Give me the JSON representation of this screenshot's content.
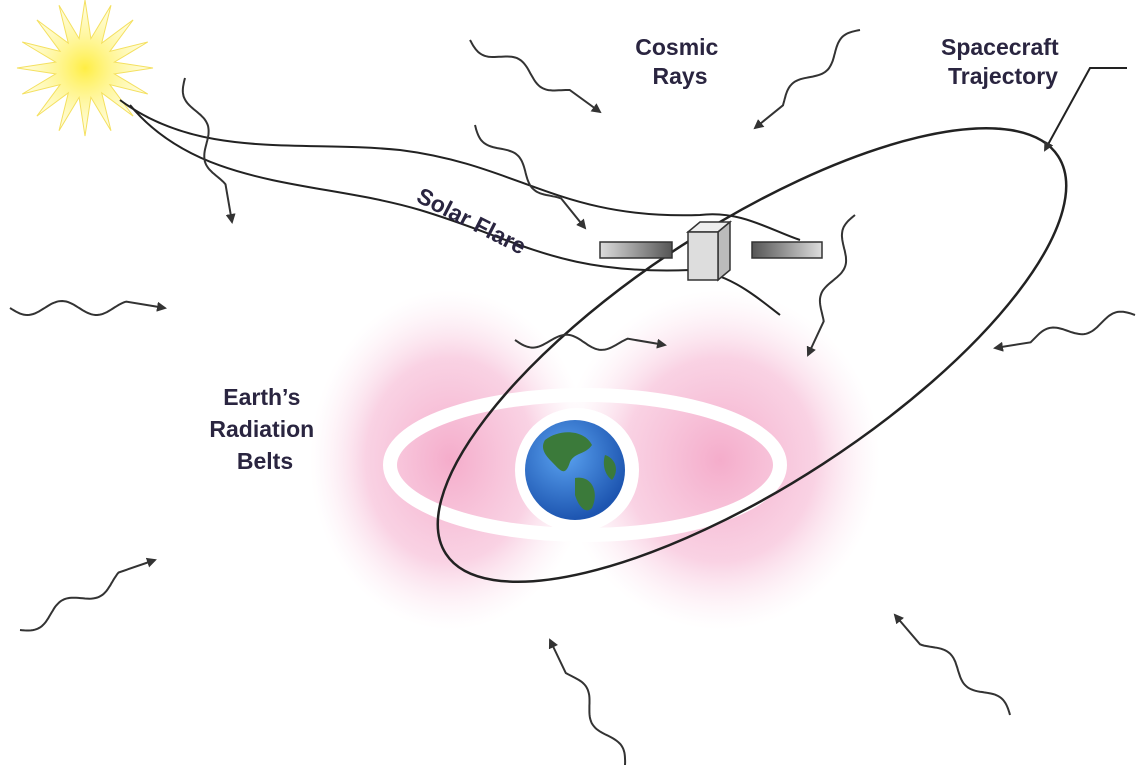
{
  "labels": {
    "cosmic_rays": [
      "Cosmic",
      "Rays"
    ],
    "spacecraft_trajectory": [
      "Spacecraft",
      "Trajectory"
    ],
    "solar_flare": "Solar Flare",
    "radiation_belts": [
      "Earth’s",
      "Radiation",
      "Belts"
    ]
  }
}
